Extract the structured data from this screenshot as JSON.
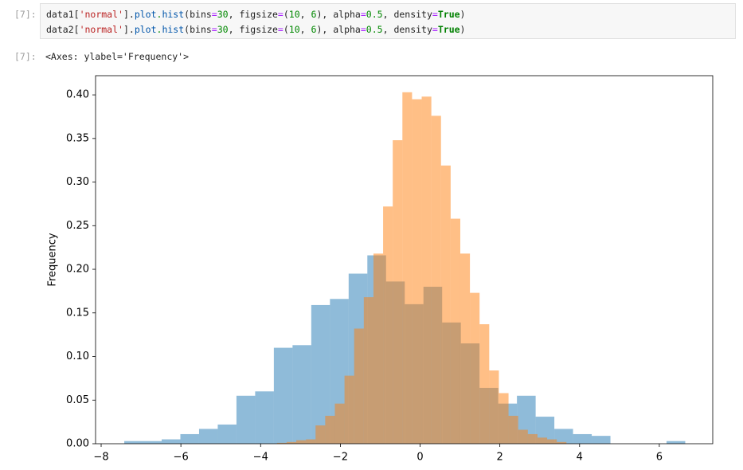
{
  "cell": {
    "prompt": "[7]:",
    "code": [
      [
        "data1",
        "[",
        "'normal'",
        "].",
        "plot",
        ".",
        "hist",
        "(",
        "bins",
        "=",
        "30",
        ", ",
        "figsize",
        "=",
        "(",
        "10",
        ", ",
        "6",
        "), ",
        "alpha",
        "=",
        "0.5",
        ", ",
        "density",
        "=",
        "True",
        ")"
      ],
      [
        "data2",
        "[",
        "'normal'",
        "].",
        "plot",
        ".",
        "hist",
        "(",
        "bins",
        "=",
        "30",
        ", ",
        "figsize",
        "=",
        "(",
        "10",
        ", ",
        "6",
        "), ",
        "alpha",
        "=",
        "0.5",
        ", ",
        "density",
        "=",
        "True",
        ")"
      ]
    ]
  },
  "output": {
    "prompt": "[7]:",
    "text": "<Axes: ylabel='Frequency'>"
  },
  "chart_data": {
    "type": "histogram",
    "ylabel": "Frequency",
    "series": [
      {
        "color": "#1f77b4",
        "alpha": 0.5,
        "bins": [
          -7.42,
          -6.951,
          -6.482,
          -6.013,
          -5.544,
          -5.075,
          -4.606,
          -4.137,
          -3.668,
          -3.199,
          -2.73,
          -2.261,
          -1.792,
          -1.323,
          -0.854,
          -0.385,
          0.084,
          0.553,
          1.022,
          1.491,
          1.96,
          2.429,
          2.898,
          3.367,
          3.836,
          4.305,
          4.774,
          5.243,
          5.712,
          6.181,
          6.65
        ],
        "values": [
          0.003,
          0.003,
          0.005,
          0.011,
          0.017,
          0.022,
          0.055,
          0.06,
          0.11,
          0.113,
          0.159,
          0.166,
          0.195,
          0.216,
          0.186,
          0.16,
          0.18,
          0.139,
          0.115,
          0.064,
          0.046,
          0.055,
          0.031,
          0.017,
          0.011,
          0.009,
          0,
          0,
          0,
          0.003
        ]
      },
      {
        "color": "#ff7f0e",
        "alpha": 0.5,
        "bins": [
          -3.59,
          -3.348,
          -3.106,
          -2.864,
          -2.622,
          -2.38,
          -2.138,
          -1.896,
          -1.654,
          -1.412,
          -1.17,
          -0.928,
          -0.686,
          -0.444,
          -0.202,
          0.04,
          0.282,
          0.524,
          0.766,
          1.008,
          1.25,
          1.492,
          1.734,
          1.976,
          2.218,
          2.46,
          2.702,
          2.944,
          3.186,
          3.428,
          3.67
        ],
        "values": [
          0.001,
          0.002,
          0.004,
          0.005,
          0.021,
          0.032,
          0.046,
          0.078,
          0.132,
          0.168,
          0.218,
          0.272,
          0.348,
          0.403,
          0.395,
          0.398,
          0.376,
          0.319,
          0.258,
          0.218,
          0.173,
          0.137,
          0.084,
          0.058,
          0.032,
          0.016,
          0.011,
          0.007,
          0.005,
          0.002
        ]
      }
    ],
    "xlim": [
      -8.14,
      7.34
    ],
    "xticks": [
      {
        "value": -8,
        "label": "−8"
      },
      {
        "value": -6,
        "label": "−6"
      },
      {
        "value": -4,
        "label": "−4"
      },
      {
        "value": -2,
        "label": "−2"
      },
      {
        "value": 0,
        "label": "0"
      },
      {
        "value": 2,
        "label": "2"
      },
      {
        "value": 4,
        "label": "4"
      },
      {
        "value": 6,
        "label": "6"
      }
    ],
    "ylim": [
      0,
      0.422
    ],
    "yticks": [
      {
        "value": 0,
        "label": "0.00"
      },
      {
        "value": 0.05,
        "label": "0.05"
      },
      {
        "value": 0.1,
        "label": "0.10"
      },
      {
        "value": 0.15,
        "label": "0.15"
      },
      {
        "value": 0.2,
        "label": "0.20"
      },
      {
        "value": 0.25,
        "label": "0.25"
      },
      {
        "value": 0.3,
        "label": "0.30"
      },
      {
        "value": 0.35,
        "label": "0.35"
      },
      {
        "value": 0.4,
        "label": "0.40"
      }
    ]
  }
}
